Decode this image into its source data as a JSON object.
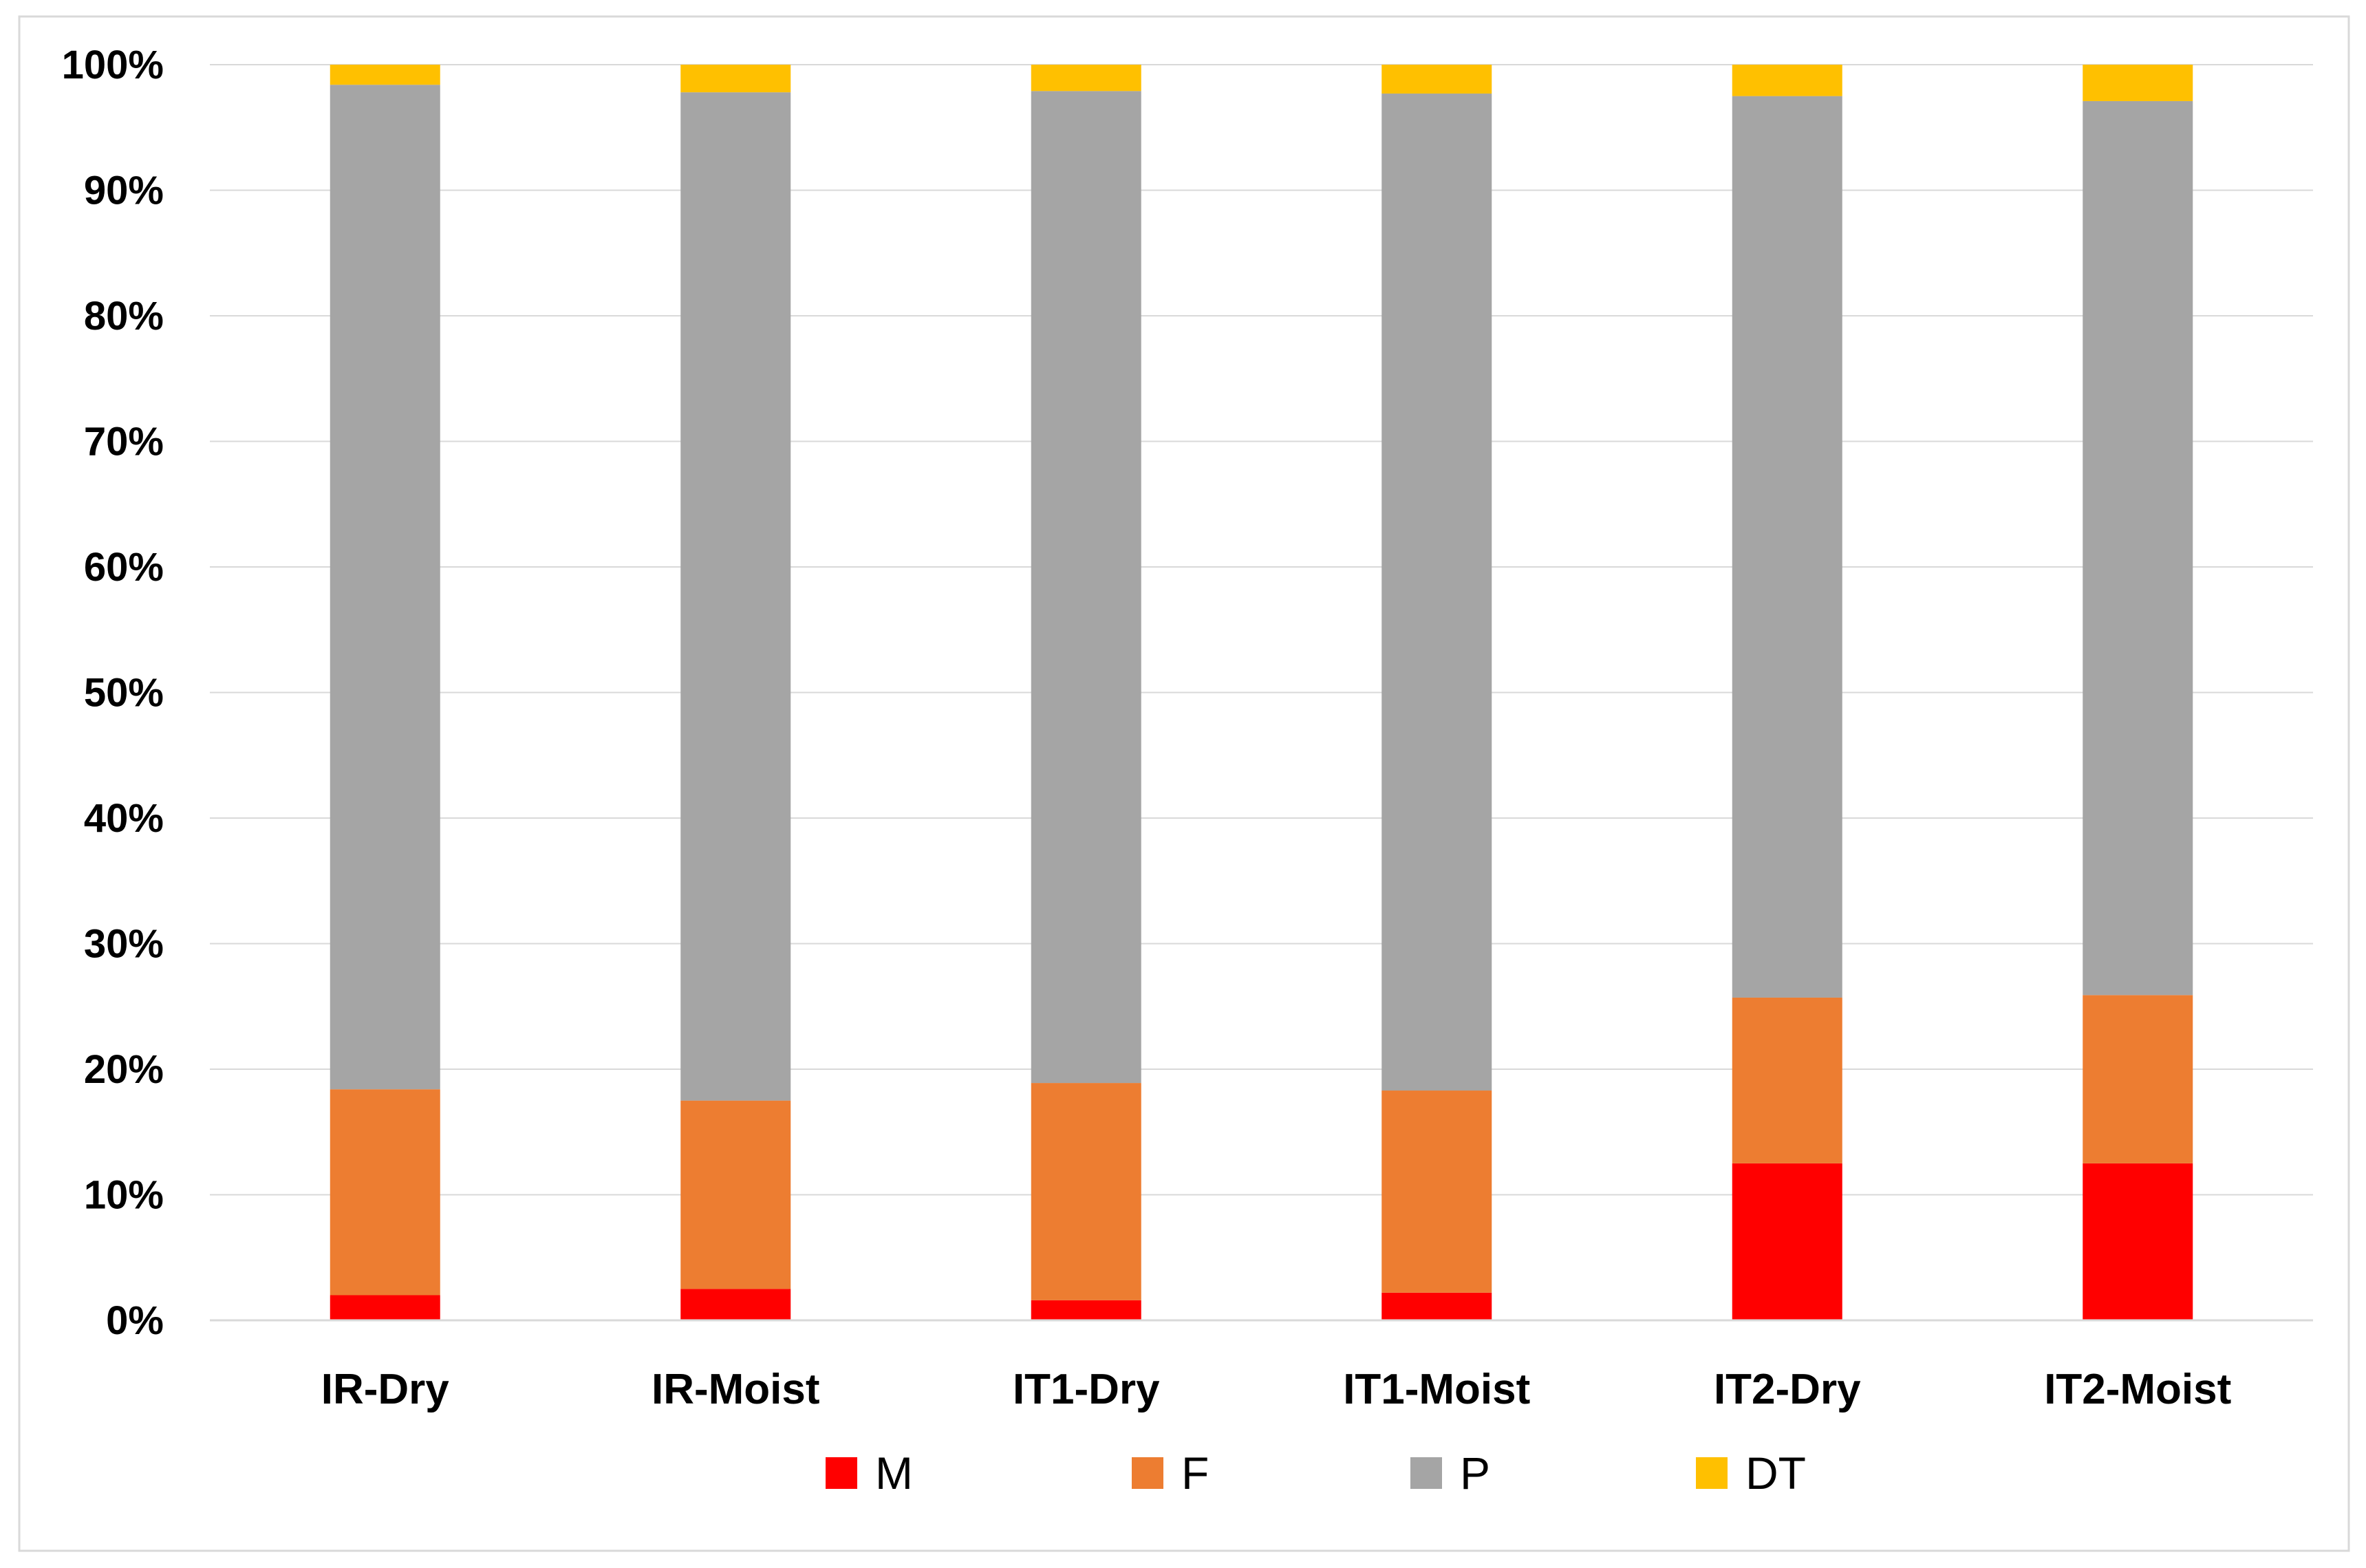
{
  "chart_data": {
    "type": "bar",
    "stacked": "percent",
    "title": "",
    "xlabel": "",
    "ylabel": "",
    "categories": [
      "IR-Dry",
      "IR-Moist",
      "IT1-Dry",
      "IT1-Moist",
      "IT2-Dry",
      "IT2-Moist"
    ],
    "series": [
      {
        "name": "M",
        "color": "#ff0000",
        "values": [
          2.0,
          2.5,
          1.6,
          2.2,
          12.5,
          12.5
        ]
      },
      {
        "name": "F",
        "color": "#ed7d31",
        "values": [
          16.4,
          15.0,
          17.3,
          16.1,
          13.2,
          13.4
        ]
      },
      {
        "name": "P",
        "color": "#a5a5a5",
        "values": [
          80.0,
          80.3,
          79.0,
          79.4,
          71.8,
          71.2
        ]
      },
      {
        "name": "DT",
        "color": "#ffc000",
        "values": [
          1.6,
          2.2,
          2.1,
          2.3,
          2.5,
          2.9
        ]
      }
    ],
    "ylim": [
      0,
      100
    ],
    "yticks": [
      0,
      10,
      20,
      30,
      40,
      50,
      60,
      70,
      80,
      90,
      100
    ],
    "ytick_labels": [
      "0%",
      "10%",
      "20%",
      "30%",
      "40%",
      "50%",
      "60%",
      "70%",
      "80%",
      "90%",
      "100%"
    ],
    "grid": true,
    "legend_position": "bottom",
    "colors": {
      "grid": "#d9d9d9",
      "axis": "#d9d9d9",
      "border": "#d9d9d9",
      "background": "#ffffff"
    }
  }
}
